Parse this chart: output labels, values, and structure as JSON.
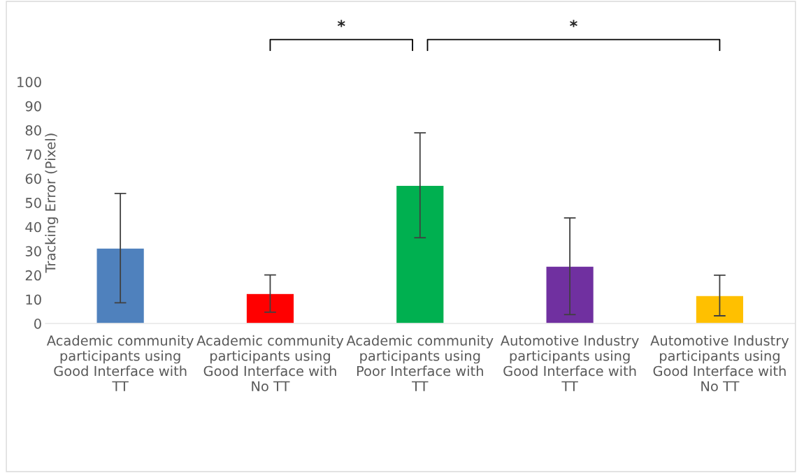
{
  "chart_data": {
    "type": "bar",
    "ylabel": "Tracking Error (Pixel)",
    "categories": [
      "Academic community\nparticipants using\nGood Interface with\nTT",
      "Academic community\nparticipants using\nGood Interface with\nNo TT",
      "Academic community\nparticipants using\nPoor Interface with\nTT",
      "Automotive Industry\nparticipants using\nGood Interface with\nTT",
      "Automotive Industry\nparticipants using\nGood Interface with\nNo TT"
    ],
    "values": [
      31.2,
      12.4,
      57.2,
      23.7,
      11.6
    ],
    "errors": [
      22.6,
      7.7,
      21.7,
      20,
      8.4
    ],
    "colors": [
      "#4f81bd",
      "#ff0000",
      "#00b050",
      "#7030a0",
      "#ffc000"
    ],
    "ylim": [
      0,
      100
    ],
    "yticks": [
      0,
      10,
      20,
      30,
      40,
      50,
      60,
      70,
      80,
      90,
      100
    ],
    "grid": false,
    "annotations": [
      "*",
      "*"
    ]
  }
}
